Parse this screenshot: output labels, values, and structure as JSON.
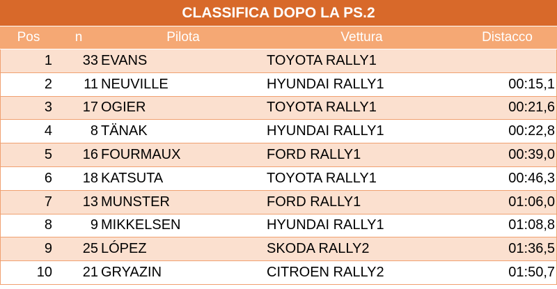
{
  "title": "CLASSIFICA DOPO LA PS.2",
  "columns": {
    "pos": "Pos",
    "n": "n",
    "pilota": "Pilota",
    "vettura": "Vettura",
    "distacco": "Distacco"
  },
  "rows": [
    {
      "pos": "1",
      "n": "33",
      "pilota": "EVANS",
      "vettura": "TOYOTA RALLY1",
      "distacco": ""
    },
    {
      "pos": "2",
      "n": "11",
      "pilota": "NEUVILLE",
      "vettura": "HYUNDAI RALLY1",
      "distacco": "00:15,1"
    },
    {
      "pos": "3",
      "n": "17",
      "pilota": "OGIER",
      "vettura": "TOYOTA RALLY1",
      "distacco": "00:21,6"
    },
    {
      "pos": "4",
      "n": "8",
      "pilota": "TÄNAK",
      "vettura": "HYUNDAI RALLY1",
      "distacco": "00:22,8"
    },
    {
      "pos": "5",
      "n": "16",
      "pilota": "FOURMAUX",
      "vettura": "FORD RALLY1",
      "distacco": "00:39,0"
    },
    {
      "pos": "6",
      "n": "18",
      "pilota": "KATSUTA",
      "vettura": "TOYOTA RALLY1",
      "distacco": "00:46,3"
    },
    {
      "pos": "7",
      "n": "13",
      "pilota": "MUNSTER",
      "vettura": "FORD RALLY1",
      "distacco": "01:06,0"
    },
    {
      "pos": "8",
      "n": "9",
      "pilota": "MIKKELSEN",
      "vettura": "HYUNDAI RALLY1",
      "distacco": "01:08,8"
    },
    {
      "pos": "9",
      "n": "25",
      "pilota": "LÓPEZ",
      "vettura": "SKODA RALLY2",
      "distacco": "01:36,5"
    },
    {
      "pos": "10",
      "n": "21",
      "pilota": "GRYAZIN",
      "vettura": "CITROEN RALLY2",
      "distacco": "01:50,7"
    }
  ],
  "colors": {
    "title_bg": "#d8692a",
    "header_bg": "#f5a874",
    "row_alt_bg": "#fbe0cf",
    "row_plain_bg": "#ffffff",
    "grid": "#f0a070"
  }
}
